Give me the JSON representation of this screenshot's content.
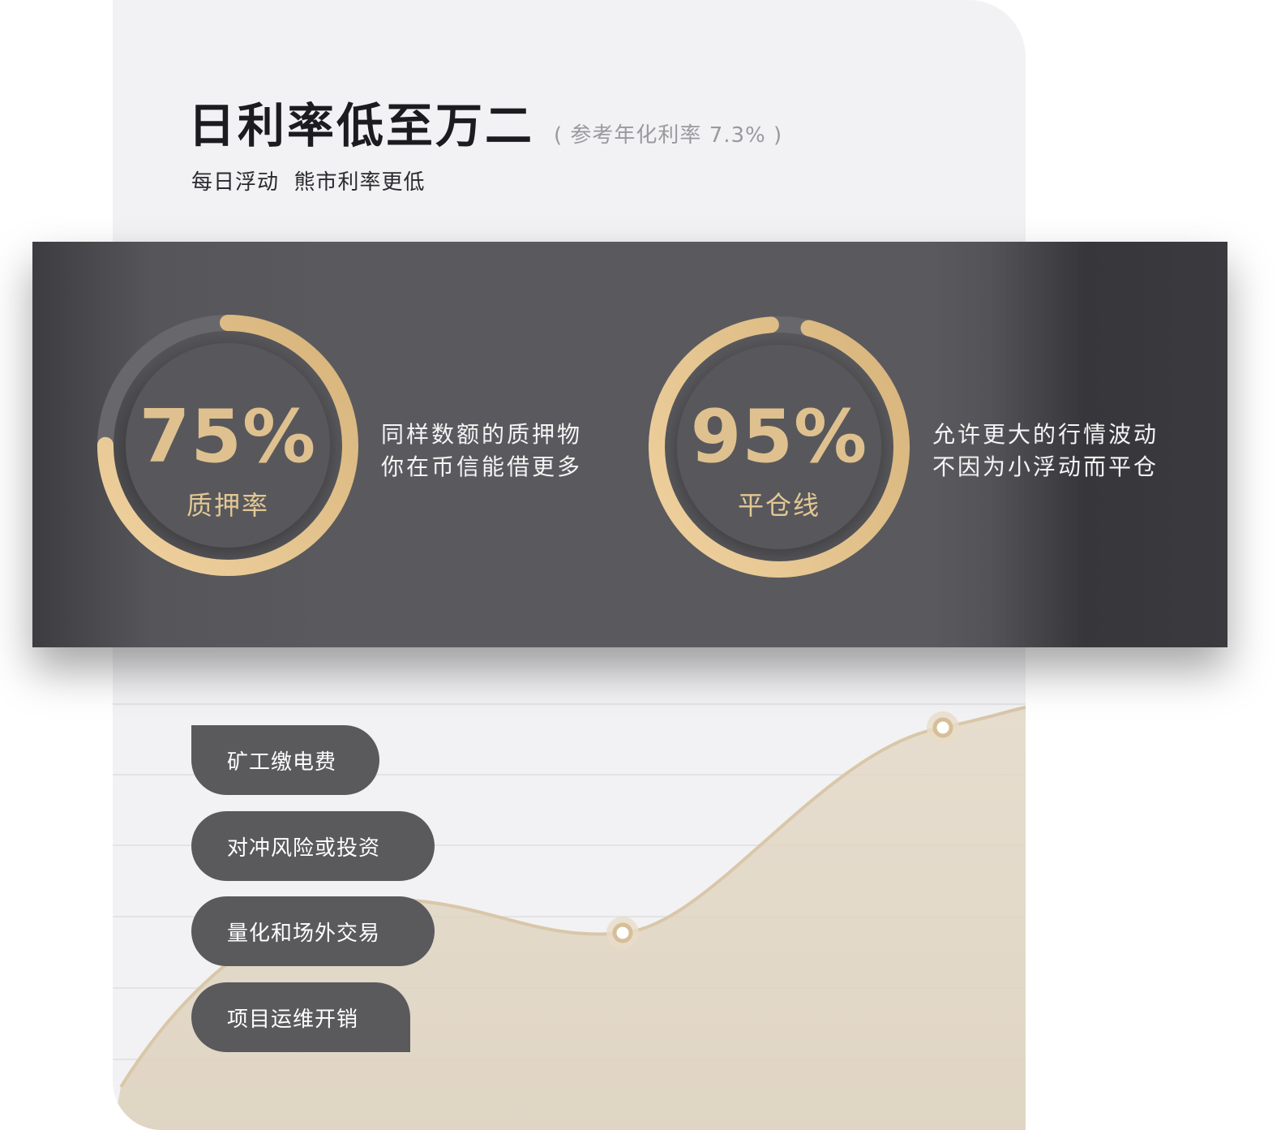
{
  "header": {
    "title": "日利率低至万二",
    "note": "( 参考年化利率 7.3% )",
    "subtitle": "每日浮动  熊市利率更低"
  },
  "stats": [
    {
      "value": "75%",
      "label": "质押率",
      "progress": 0.75,
      "desc_line1": "同样数额的质押物",
      "desc_line2": "你在币信能借更多"
    },
    {
      "value": "95%",
      "label": "平仓线",
      "progress": 0.95,
      "desc_line1": "允许更大的行情波动",
      "desc_line2": "不因为小浮动而平仓"
    }
  ],
  "use_cases": [
    "矿工缴电费",
    "对冲风险或投资",
    "量化和场外交易",
    "项目运维开销"
  ],
  "colors": {
    "gold": "#dfc18f",
    "dark": "#5a5a5e",
    "card": "#f2f2f4"
  }
}
